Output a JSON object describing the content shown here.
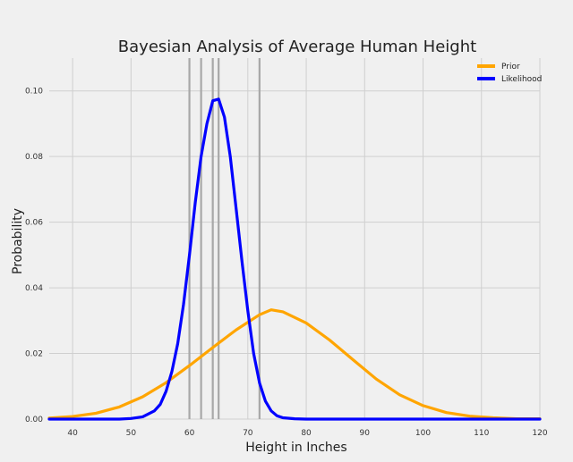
{
  "chart_data": {
    "type": "line",
    "title": "Bayesian Analysis of Average Human Height",
    "xlabel": "Height in Inches",
    "ylabel": "Probability",
    "xlim": [
      36,
      120
    ],
    "ylim": [
      0,
      0.11
    ],
    "xticks": [
      40,
      50,
      60,
      70,
      80,
      90,
      100,
      110,
      120
    ],
    "yticks": [
      0.0,
      0.02,
      0.04,
      0.06,
      0.08,
      0.1
    ],
    "grid": true,
    "legend_position": "top-right",
    "series": [
      {
        "name": "Prior",
        "color": "#ffa500",
        "x": [
          36,
          40,
          44,
          48,
          52,
          56,
          60,
          64,
          68,
          72,
          74,
          76,
          80,
          84,
          88,
          92,
          96,
          100,
          104,
          108,
          112,
          116,
          120
        ],
        "y": [
          0.0003,
          0.0008,
          0.0018,
          0.0037,
          0.0068,
          0.0111,
          0.0163,
          0.0218,
          0.0272,
          0.0318,
          0.0333,
          0.0327,
          0.0293,
          0.0241,
          0.0181,
          0.0122,
          0.0074,
          0.0041,
          0.002,
          0.0009,
          0.0004,
          0.0001,
          0.0001
        ]
      },
      {
        "name": "Likelihood",
        "color": "#0000ff",
        "x": [
          36,
          44,
          48,
          50,
          52,
          54,
          55,
          56,
          57,
          58,
          59,
          60,
          61,
          62,
          63,
          64,
          65,
          66,
          67,
          68,
          69,
          70,
          71,
          72,
          73,
          74,
          75,
          76,
          78,
          80,
          90,
          120
        ],
        "y": [
          0,
          0,
          0,
          0.0002,
          0.0007,
          0.0025,
          0.0045,
          0.0085,
          0.0145,
          0.023,
          0.035,
          0.05,
          0.066,
          0.08,
          0.09,
          0.097,
          0.0975,
          0.092,
          0.08,
          0.064,
          0.048,
          0.033,
          0.02,
          0.011,
          0.0055,
          0.0025,
          0.001,
          0.0004,
          0.0001,
          0,
          0,
          0
        ]
      }
    ],
    "observations": [
      60,
      62,
      64,
      65,
      72
    ]
  }
}
